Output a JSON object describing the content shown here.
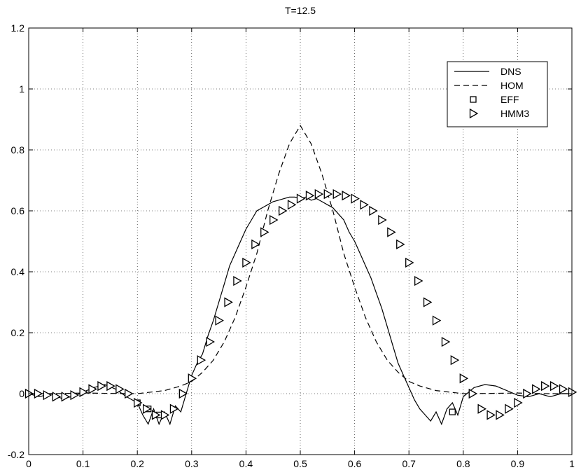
{
  "chart_data": {
    "type": "line",
    "title": "T=12.5",
    "xlabel": "",
    "ylabel": "",
    "xlim": [
      0,
      1
    ],
    "ylim": [
      -0.2,
      1.2
    ],
    "xticks": [
      0,
      0.1,
      0.2,
      0.3,
      0.4,
      0.5,
      0.6,
      0.7,
      0.8,
      0.9,
      1
    ],
    "xtick_labels": [
      "0",
      "0.1",
      "0.2",
      "0.3",
      "0.4",
      "0.5",
      "0.6",
      "0.7",
      "0.8",
      "0.9",
      "1"
    ],
    "yticks": [
      -0.2,
      0,
      0.2,
      0.4,
      0.6,
      0.8,
      1,
      1.2
    ],
    "ytick_labels": [
      "-0.2",
      "0",
      "0.2",
      "0.4",
      "0.6",
      "0.8",
      "1",
      "1.2"
    ],
    "grid": true,
    "legend_position": "top-right",
    "series": [
      {
        "name": "DNS",
        "style": "solid",
        "color": "#000000",
        "x": [
          0,
          0.02,
          0.04,
          0.06,
          0.08,
          0.1,
          0.12,
          0.14,
          0.16,
          0.18,
          0.2,
          0.21,
          0.22,
          0.23,
          0.24,
          0.25,
          0.26,
          0.27,
          0.28,
          0.29,
          0.3,
          0.31,
          0.32,
          0.33,
          0.34,
          0.35,
          0.36,
          0.37,
          0.38,
          0.39,
          0.4,
          0.41,
          0.42,
          0.43,
          0.44,
          0.45,
          0.46,
          0.47,
          0.48,
          0.49,
          0.5,
          0.51,
          0.52,
          0.53,
          0.54,
          0.55,
          0.56,
          0.57,
          0.58,
          0.59,
          0.6,
          0.61,
          0.62,
          0.63,
          0.64,
          0.65,
          0.66,
          0.67,
          0.68,
          0.69,
          0.7,
          0.71,
          0.72,
          0.73,
          0.74,
          0.75,
          0.76,
          0.77,
          0.78,
          0.79,
          0.8,
          0.82,
          0.84,
          0.86,
          0.88,
          0.9,
          0.92,
          0.94,
          0.96,
          0.98,
          1
        ],
        "y": [
          0,
          -0.01,
          0,
          -0.015,
          -0.01,
          0.005,
          0.02,
          0.03,
          0.015,
          -0.01,
          -0.03,
          -0.07,
          -0.1,
          -0.05,
          -0.1,
          -0.06,
          -0.1,
          -0.04,
          -0.06,
          0,
          0.06,
          0.1,
          0.13,
          0.19,
          0.24,
          0.3,
          0.36,
          0.42,
          0.46,
          0.5,
          0.54,
          0.57,
          0.6,
          0.61,
          0.62,
          0.63,
          0.635,
          0.64,
          0.645,
          0.645,
          0.64,
          0.645,
          0.635,
          0.64,
          0.63,
          0.62,
          0.61,
          0.59,
          0.57,
          0.53,
          0.5,
          0.46,
          0.42,
          0.38,
          0.33,
          0.28,
          0.22,
          0.16,
          0.1,
          0.06,
          0.02,
          -0.02,
          -0.05,
          -0.07,
          -0.09,
          -0.06,
          -0.1,
          -0.05,
          -0.03,
          -0.07,
          -0.01,
          0.02,
          0.03,
          0.025,
          0.01,
          -0.005,
          -0.01,
          0,
          -0.01,
          0,
          0
        ]
      },
      {
        "name": "HOM",
        "style": "dashed",
        "color": "#000000",
        "x": [
          0,
          0.05,
          0.1,
          0.15,
          0.2,
          0.25,
          0.28,
          0.3,
          0.32,
          0.34,
          0.36,
          0.38,
          0.4,
          0.42,
          0.44,
          0.46,
          0.48,
          0.5,
          0.52,
          0.54,
          0.56,
          0.58,
          0.6,
          0.62,
          0.64,
          0.66,
          0.68,
          0.7,
          0.72,
          0.75,
          0.8,
          0.85,
          0.9,
          0.95,
          1
        ],
        "y": [
          0,
          0,
          0.002,
          0.001,
          0,
          0.01,
          0.025,
          0.04,
          0.07,
          0.11,
          0.17,
          0.25,
          0.35,
          0.46,
          0.6,
          0.72,
          0.82,
          0.88,
          0.82,
          0.72,
          0.6,
          0.46,
          0.35,
          0.25,
          0.17,
          0.11,
          0.07,
          0.04,
          0.025,
          0.01,
          0,
          0.001,
          0.002,
          0,
          0
        ]
      },
      {
        "name": "EFF",
        "style": "markers",
        "marker": "square",
        "color": "#000000",
        "x": [
          0.2,
          0.22,
          0.24,
          0.78
        ],
        "y": [
          -0.03,
          -0.05,
          -0.07,
          -0.06
        ]
      },
      {
        "name": "HMM3",
        "style": "markers",
        "marker": "triangle-right",
        "color": "#000000",
        "x": [
          0,
          0.0167,
          0.0333,
          0.05,
          0.0667,
          0.0833,
          0.1,
          0.1167,
          0.1333,
          0.15,
          0.1667,
          0.1833,
          0.2,
          0.2167,
          0.2333,
          0.25,
          0.2667,
          0.2833,
          0.3,
          0.3167,
          0.3333,
          0.35,
          0.3667,
          0.3833,
          0.4,
          0.4167,
          0.4333,
          0.45,
          0.4667,
          0.4833,
          0.5,
          0.5167,
          0.5333,
          0.55,
          0.5667,
          0.5833,
          0.6,
          0.6167,
          0.6333,
          0.65,
          0.6667,
          0.6833,
          0.7,
          0.7167,
          0.7333,
          0.75,
          0.7667,
          0.7833,
          0.8,
          0.8167,
          0.8333,
          0.85,
          0.8667,
          0.8833,
          0.9,
          0.9167,
          0.9333,
          0.95,
          0.9667,
          0.9833,
          1
        ],
        "y": [
          0,
          0,
          -0.005,
          -0.01,
          -0.01,
          -0.005,
          0.005,
          0.015,
          0.025,
          0.025,
          0.015,
          0,
          -0.03,
          -0.05,
          -0.07,
          -0.07,
          -0.05,
          0,
          0.05,
          0.11,
          0.17,
          0.24,
          0.3,
          0.37,
          0.43,
          0.49,
          0.53,
          0.57,
          0.6,
          0.62,
          0.64,
          0.65,
          0.655,
          0.655,
          0.655,
          0.65,
          0.64,
          0.62,
          0.6,
          0.57,
          0.53,
          0.49,
          0.43,
          0.37,
          0.3,
          0.24,
          0.17,
          0.11,
          0.05,
          0,
          -0.05,
          -0.07,
          -0.07,
          -0.05,
          -0.03,
          0,
          0.015,
          0.025,
          0.025,
          0.015,
          0.005
        ]
      }
    ]
  }
}
